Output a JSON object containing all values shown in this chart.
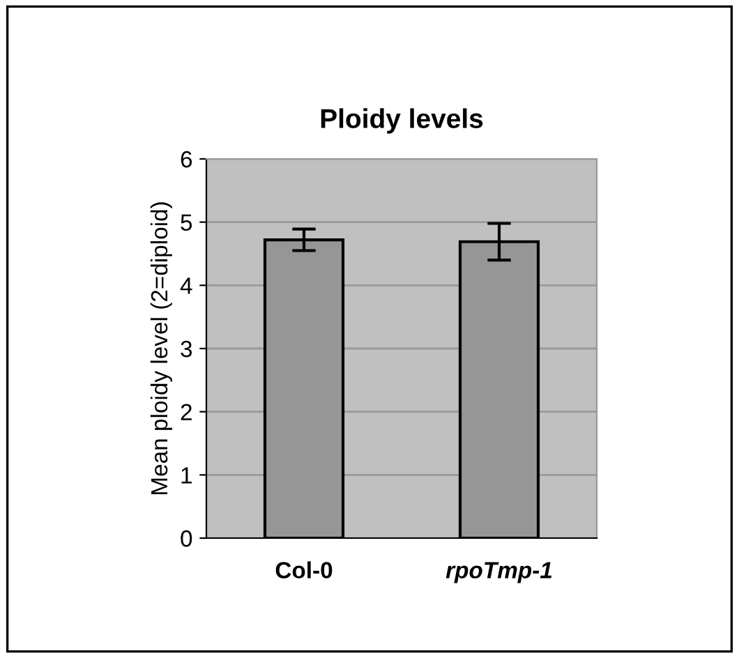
{
  "chart_data": {
    "type": "bar",
    "title": "Ploidy levels",
    "ylabel": "Mean ploidy level (2=diploid)",
    "categories": [
      "Col-0",
      "rpoTmp-1"
    ],
    "values": [
      4.72,
      4.69
    ],
    "errors": [
      0.17,
      0.29
    ],
    "color": "#969696",
    "ylim": [
      0,
      6
    ],
    "yticks": [
      0,
      1,
      2,
      3,
      4,
      5,
      6
    ],
    "grid": "y",
    "legend": false
  }
}
